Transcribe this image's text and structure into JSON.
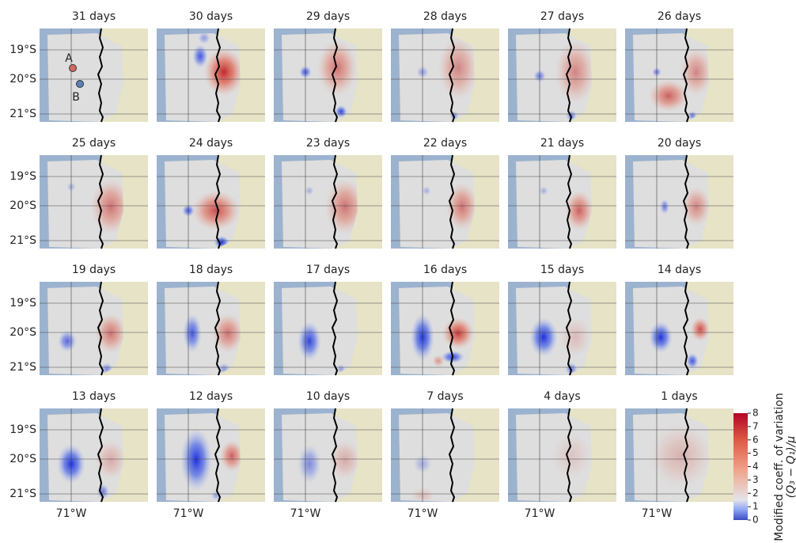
{
  "panels": [
    {
      "title": "31 days"
    },
    {
      "title": "30 days"
    },
    {
      "title": "29 days"
    },
    {
      "title": "28 days"
    },
    {
      "title": "27 days"
    },
    {
      "title": "26 days"
    },
    {
      "title": "25 days"
    },
    {
      "title": "24 days"
    },
    {
      "title": "23 days"
    },
    {
      "title": "22 days"
    },
    {
      "title": "21 days"
    },
    {
      "title": "20 days"
    },
    {
      "title": "19 days"
    },
    {
      "title": "18 days"
    },
    {
      "title": "17 days"
    },
    {
      "title": "16 days"
    },
    {
      "title": "15 days"
    },
    {
      "title": "14 days"
    },
    {
      "title": "13 days"
    },
    {
      "title": "12 days"
    },
    {
      "title": "10 days"
    },
    {
      "title": "7 days"
    },
    {
      "title": "4 days"
    },
    {
      "title": "1 days"
    }
  ],
  "lat_labels": [
    "19°S",
    "20°S",
    "21°S"
  ],
  "lon_label": "71°W",
  "markers": [
    "A",
    "B"
  ],
  "colorbar": {
    "lim": [
      0,
      8
    ],
    "ticks": [
      0,
      1,
      2,
      3,
      4,
      5,
      6,
      7,
      8
    ],
    "label": [
      "Modified coeff. of variation",
      "(Q₃ − Q₁)/μ"
    ]
  }
}
